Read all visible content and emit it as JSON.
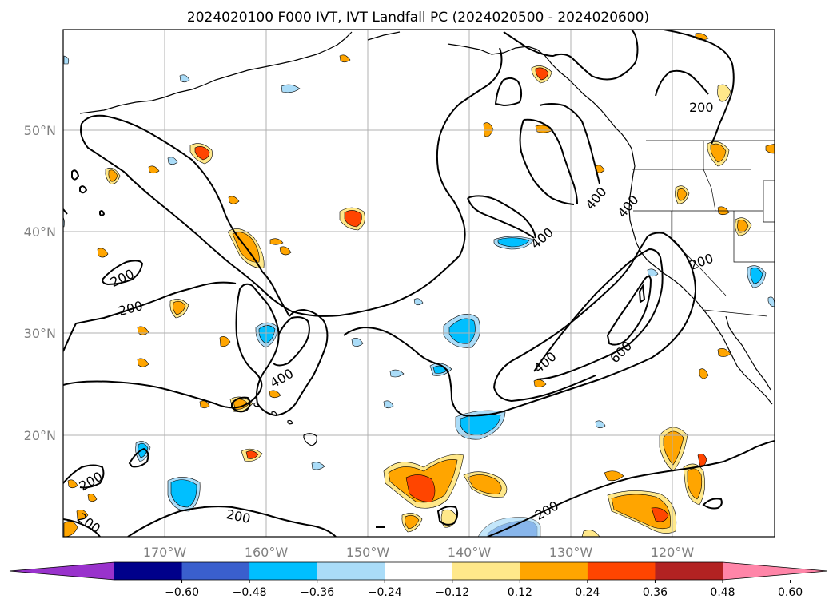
{
  "title": "2024020100 F000 IVT, IVT Landfall PC (2024020500 - 2024020600)",
  "map": {
    "lon_ticks": [
      "170°W",
      "160°W",
      "150°W",
      "140°W",
      "130°W",
      "120°W"
    ],
    "lat_ticks": [
      "50°N",
      "40°N",
      "30°N",
      "20°N"
    ],
    "grid": true,
    "contour_levels": [
      "200",
      "400",
      "600"
    ],
    "contour_labels": [
      "200",
      "200",
      "400",
      "400",
      "400",
      "400",
      "400",
      "600",
      "200",
      "200",
      "200",
      "200",
      "200"
    ]
  },
  "colorbar": {
    "ticks": [
      "−0.60",
      "−0.48",
      "−0.36",
      "−0.24",
      "−0.12",
      "0.12",
      "0.24",
      "0.36",
      "0.48",
      "0.60"
    ],
    "colors": [
      "#9932cc",
      "#00008b",
      "#3a5fcd",
      "#00bfff",
      "#aadcf8",
      "#ffffff",
      "#ffe88a",
      "#ffa500",
      "#ff4500",
      "#b22222",
      "#ff85a8"
    ],
    "extend": "both"
  },
  "colors": {
    "pos_light": "#ffe88a",
    "pos_mid": "#ffa500",
    "pos_strong": "#ff4500",
    "neg_light": "#aadcf8",
    "neg_mid": "#00bfff",
    "neg_strong": "#3a5fcd",
    "neg_max": "#00008b"
  }
}
